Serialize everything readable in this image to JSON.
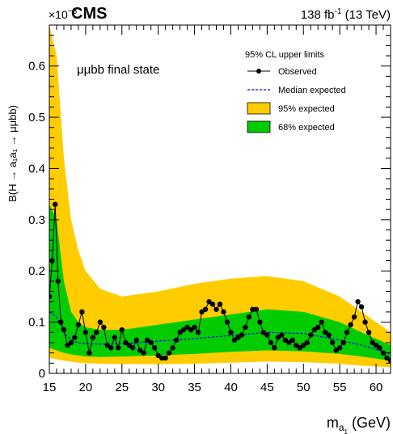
{
  "header": {
    "experiment": "CMS",
    "exponent_base": "×10",
    "exponent_power": "−3",
    "lumi_value": "138 fb",
    "lumi_power": "-1",
    "lumi_energy": " (13 TeV)"
  },
  "annotation": "μμbb final state",
  "colors": {
    "band95": "#ffcc00",
    "band68": "#00cc00",
    "observed": "#000000",
    "expected": "#0000ff"
  },
  "chart_data": {
    "type": "line",
    "xlabel_main": "m",
    "xlabel_sub": "a",
    "xlabel_subsub": "1",
    "xlabel_unit": " (GeV)",
    "ylabel": "B(H → a₁a₁ → μμbb)",
    "y_scale_note": "×10⁻³",
    "xlim": [
      15,
      62
    ],
    "ylim": [
      0,
      0.68
    ],
    "x_ticks": [
      15,
      20,
      25,
      30,
      35,
      40,
      45,
      50,
      55,
      60
    ],
    "y_ticks": [
      0,
      0.1,
      0.2,
      0.3,
      0.4,
      0.5,
      0.6
    ],
    "x_tick_labels": [
      "15",
      "20",
      "25",
      "30",
      "35",
      "40",
      "45",
      "50",
      "55",
      "60"
    ],
    "y_tick_labels": [
      "0",
      "0.1",
      "0.2",
      "0.3",
      "0.4",
      "0.5",
      "0.6"
    ],
    "legend": {
      "title": "95% CL upper limits",
      "entries": [
        "Observed",
        "Median expected",
        "95% expected",
        "68% expected"
      ],
      "placement": "top-right"
    },
    "band95": {
      "x": [
        15,
        16,
        17,
        18,
        19,
        20,
        22,
        25,
        30,
        35,
        40,
        45,
        50,
        55,
        58,
        62
      ],
      "upper": [
        0.68,
        0.62,
        0.42,
        0.3,
        0.24,
        0.2,
        0.165,
        0.15,
        0.16,
        0.175,
        0.185,
        0.19,
        0.18,
        0.15,
        0.12,
        0.08
      ],
      "lower": [
        0.03,
        0.028,
        0.025,
        0.023,
        0.021,
        0.02,
        0.019,
        0.018,
        0.018,
        0.019,
        0.021,
        0.023,
        0.022,
        0.019,
        0.015,
        0.012
      ]
    },
    "band68": {
      "x": [
        15,
        16,
        17,
        18,
        19,
        20,
        22,
        25,
        30,
        35,
        40,
        45,
        50,
        55,
        58,
        62
      ],
      "upper": [
        0.33,
        0.3,
        0.18,
        0.12,
        0.1,
        0.09,
        0.085,
        0.085,
        0.095,
        0.105,
        0.115,
        0.125,
        0.12,
        0.1,
        0.08,
        0.055
      ],
      "lower": [
        0.05,
        0.045,
        0.04,
        0.037,
        0.035,
        0.033,
        0.032,
        0.033,
        0.035,
        0.038,
        0.042,
        0.045,
        0.043,
        0.038,
        0.033,
        0.025
      ]
    },
    "expected": {
      "x": [
        15,
        16,
        17,
        18,
        19,
        20,
        22,
        25,
        30,
        35,
        40,
        45,
        50,
        55,
        58,
        62
      ],
      "y": [
        0.12,
        0.11,
        0.08,
        0.065,
        0.06,
        0.058,
        0.057,
        0.058,
        0.063,
        0.068,
        0.074,
        0.08,
        0.078,
        0.065,
        0.055,
        0.038
      ]
    },
    "observed": {
      "x": [
        15.0,
        15.4,
        15.8,
        16.2,
        16.6,
        17.0,
        17.5,
        18.0,
        18.5,
        19.0,
        19.5,
        20.0,
        20.5,
        21.0,
        21.5,
        22.0,
        22.5,
        23.0,
        23.5,
        24.0,
        24.5,
        25.0,
        25.5,
        26.0,
        26.5,
        27.0,
        27.5,
        28.0,
        28.5,
        29.0,
        29.5,
        30.0,
        30.5,
        31.0,
        31.5,
        32.0,
        32.5,
        33.0,
        33.5,
        34.0,
        34.5,
        35.0,
        35.5,
        36.0,
        36.5,
        37.0,
        37.5,
        38.0,
        38.5,
        39.0,
        39.5,
        40.0,
        40.5,
        41.0,
        41.5,
        42.0,
        42.5,
        43.0,
        43.5,
        44.0,
        44.5,
        45.0,
        45.5,
        46.0,
        46.5,
        47.0,
        47.5,
        48.0,
        48.5,
        49.0,
        49.5,
        50.0,
        50.5,
        51.0,
        51.5,
        52.0,
        52.5,
        53.0,
        53.5,
        54.0,
        54.5,
        55.0,
        55.5,
        56.0,
        56.5,
        57.0,
        57.5,
        58.0,
        58.5,
        59.0,
        59.5,
        60.0,
        60.5,
        61.0,
        61.5,
        62.0
      ],
      "y": [
        0.15,
        0.22,
        0.33,
        0.18,
        0.1,
        0.085,
        0.055,
        0.06,
        0.07,
        0.095,
        0.12,
        0.08,
        0.04,
        0.07,
        0.08,
        0.1,
        0.09,
        0.055,
        0.05,
        0.07,
        0.05,
        0.085,
        0.06,
        0.055,
        0.05,
        0.065,
        0.045,
        0.04,
        0.065,
        0.06,
        0.05,
        0.035,
        0.03,
        0.03,
        0.04,
        0.05,
        0.065,
        0.08,
        0.085,
        0.09,
        0.085,
        0.09,
        0.08,
        0.12,
        0.125,
        0.14,
        0.135,
        0.125,
        0.135,
        0.12,
        0.1,
        0.08,
        0.065,
        0.07,
        0.075,
        0.09,
        0.11,
        0.125,
        0.125,
        0.1,
        0.08,
        0.075,
        0.06,
        0.05,
        0.07,
        0.075,
        0.065,
        0.06,
        0.065,
        0.055,
        0.05,
        0.055,
        0.06,
        0.075,
        0.085,
        0.09,
        0.1,
        0.08,
        0.075,
        0.06,
        0.045,
        0.05,
        0.06,
        0.08,
        0.095,
        0.11,
        0.14,
        0.13,
        0.1,
        0.08,
        0.06,
        0.055,
        0.05,
        0.04,
        0.03,
        0.025
      ]
    }
  }
}
